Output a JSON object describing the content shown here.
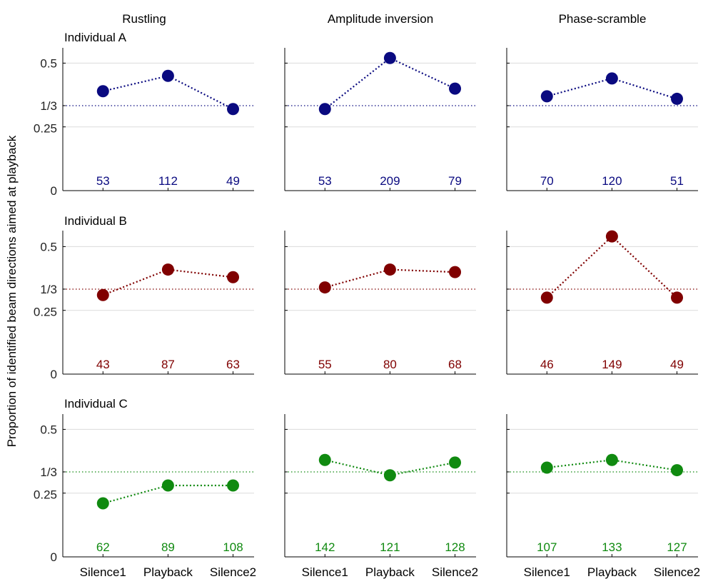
{
  "chart_data": {
    "type": "scatter",
    "ylabel": "Proportion of identified beam directions aimed at playback",
    "columns": [
      "Rustling",
      "Amplitude inversion",
      "Phase-scramble"
    ],
    "rows": [
      {
        "name": "Individual A",
        "color": "#0a0a80"
      },
      {
        "name": "Individual B",
        "color": "#800000"
      },
      {
        "name": "Individual C",
        "color": "#108a10"
      }
    ],
    "categories": [
      "Silence1",
      "Playback",
      "Silence2"
    ],
    "yticks": [
      {
        "value": 0,
        "label": "0"
      },
      {
        "value": 0.25,
        "label": "0.25"
      },
      {
        "value": 0.3333,
        "label": "1/3"
      },
      {
        "value": 0.5,
        "label": "0.5"
      }
    ],
    "ylim": [
      0,
      0.56
    ],
    "reference_line": 0.3333,
    "grid": true,
    "panels": [
      [
        {
          "values": [
            0.39,
            0.45,
            0.32
          ],
          "counts": [
            "53",
            "112",
            "49"
          ]
        },
        {
          "values": [
            0.32,
            0.52,
            0.4
          ],
          "counts": [
            "53",
            "209",
            "79"
          ]
        },
        {
          "values": [
            0.37,
            0.44,
            0.36
          ],
          "counts": [
            "70",
            "120",
            "51"
          ]
        }
      ],
      [
        {
          "values": [
            0.31,
            0.41,
            0.38
          ],
          "counts": [
            "43",
            "87",
            "63"
          ]
        },
        {
          "values": [
            0.34,
            0.41,
            0.4
          ],
          "counts": [
            "55",
            "80",
            "68"
          ]
        },
        {
          "values": [
            0.3,
            0.54,
            0.3
          ],
          "counts": [
            "46",
            "149",
            "49"
          ]
        }
      ],
      [
        {
          "values": [
            0.21,
            0.28,
            0.28
          ],
          "counts": [
            "62",
            "89",
            "108"
          ]
        },
        {
          "values": [
            0.38,
            0.32,
            0.37
          ],
          "counts": [
            "142",
            "121",
            "128"
          ]
        },
        {
          "values": [
            0.35,
            0.38,
            0.34
          ],
          "counts": [
            "107",
            "133",
            "127"
          ]
        }
      ]
    ]
  }
}
